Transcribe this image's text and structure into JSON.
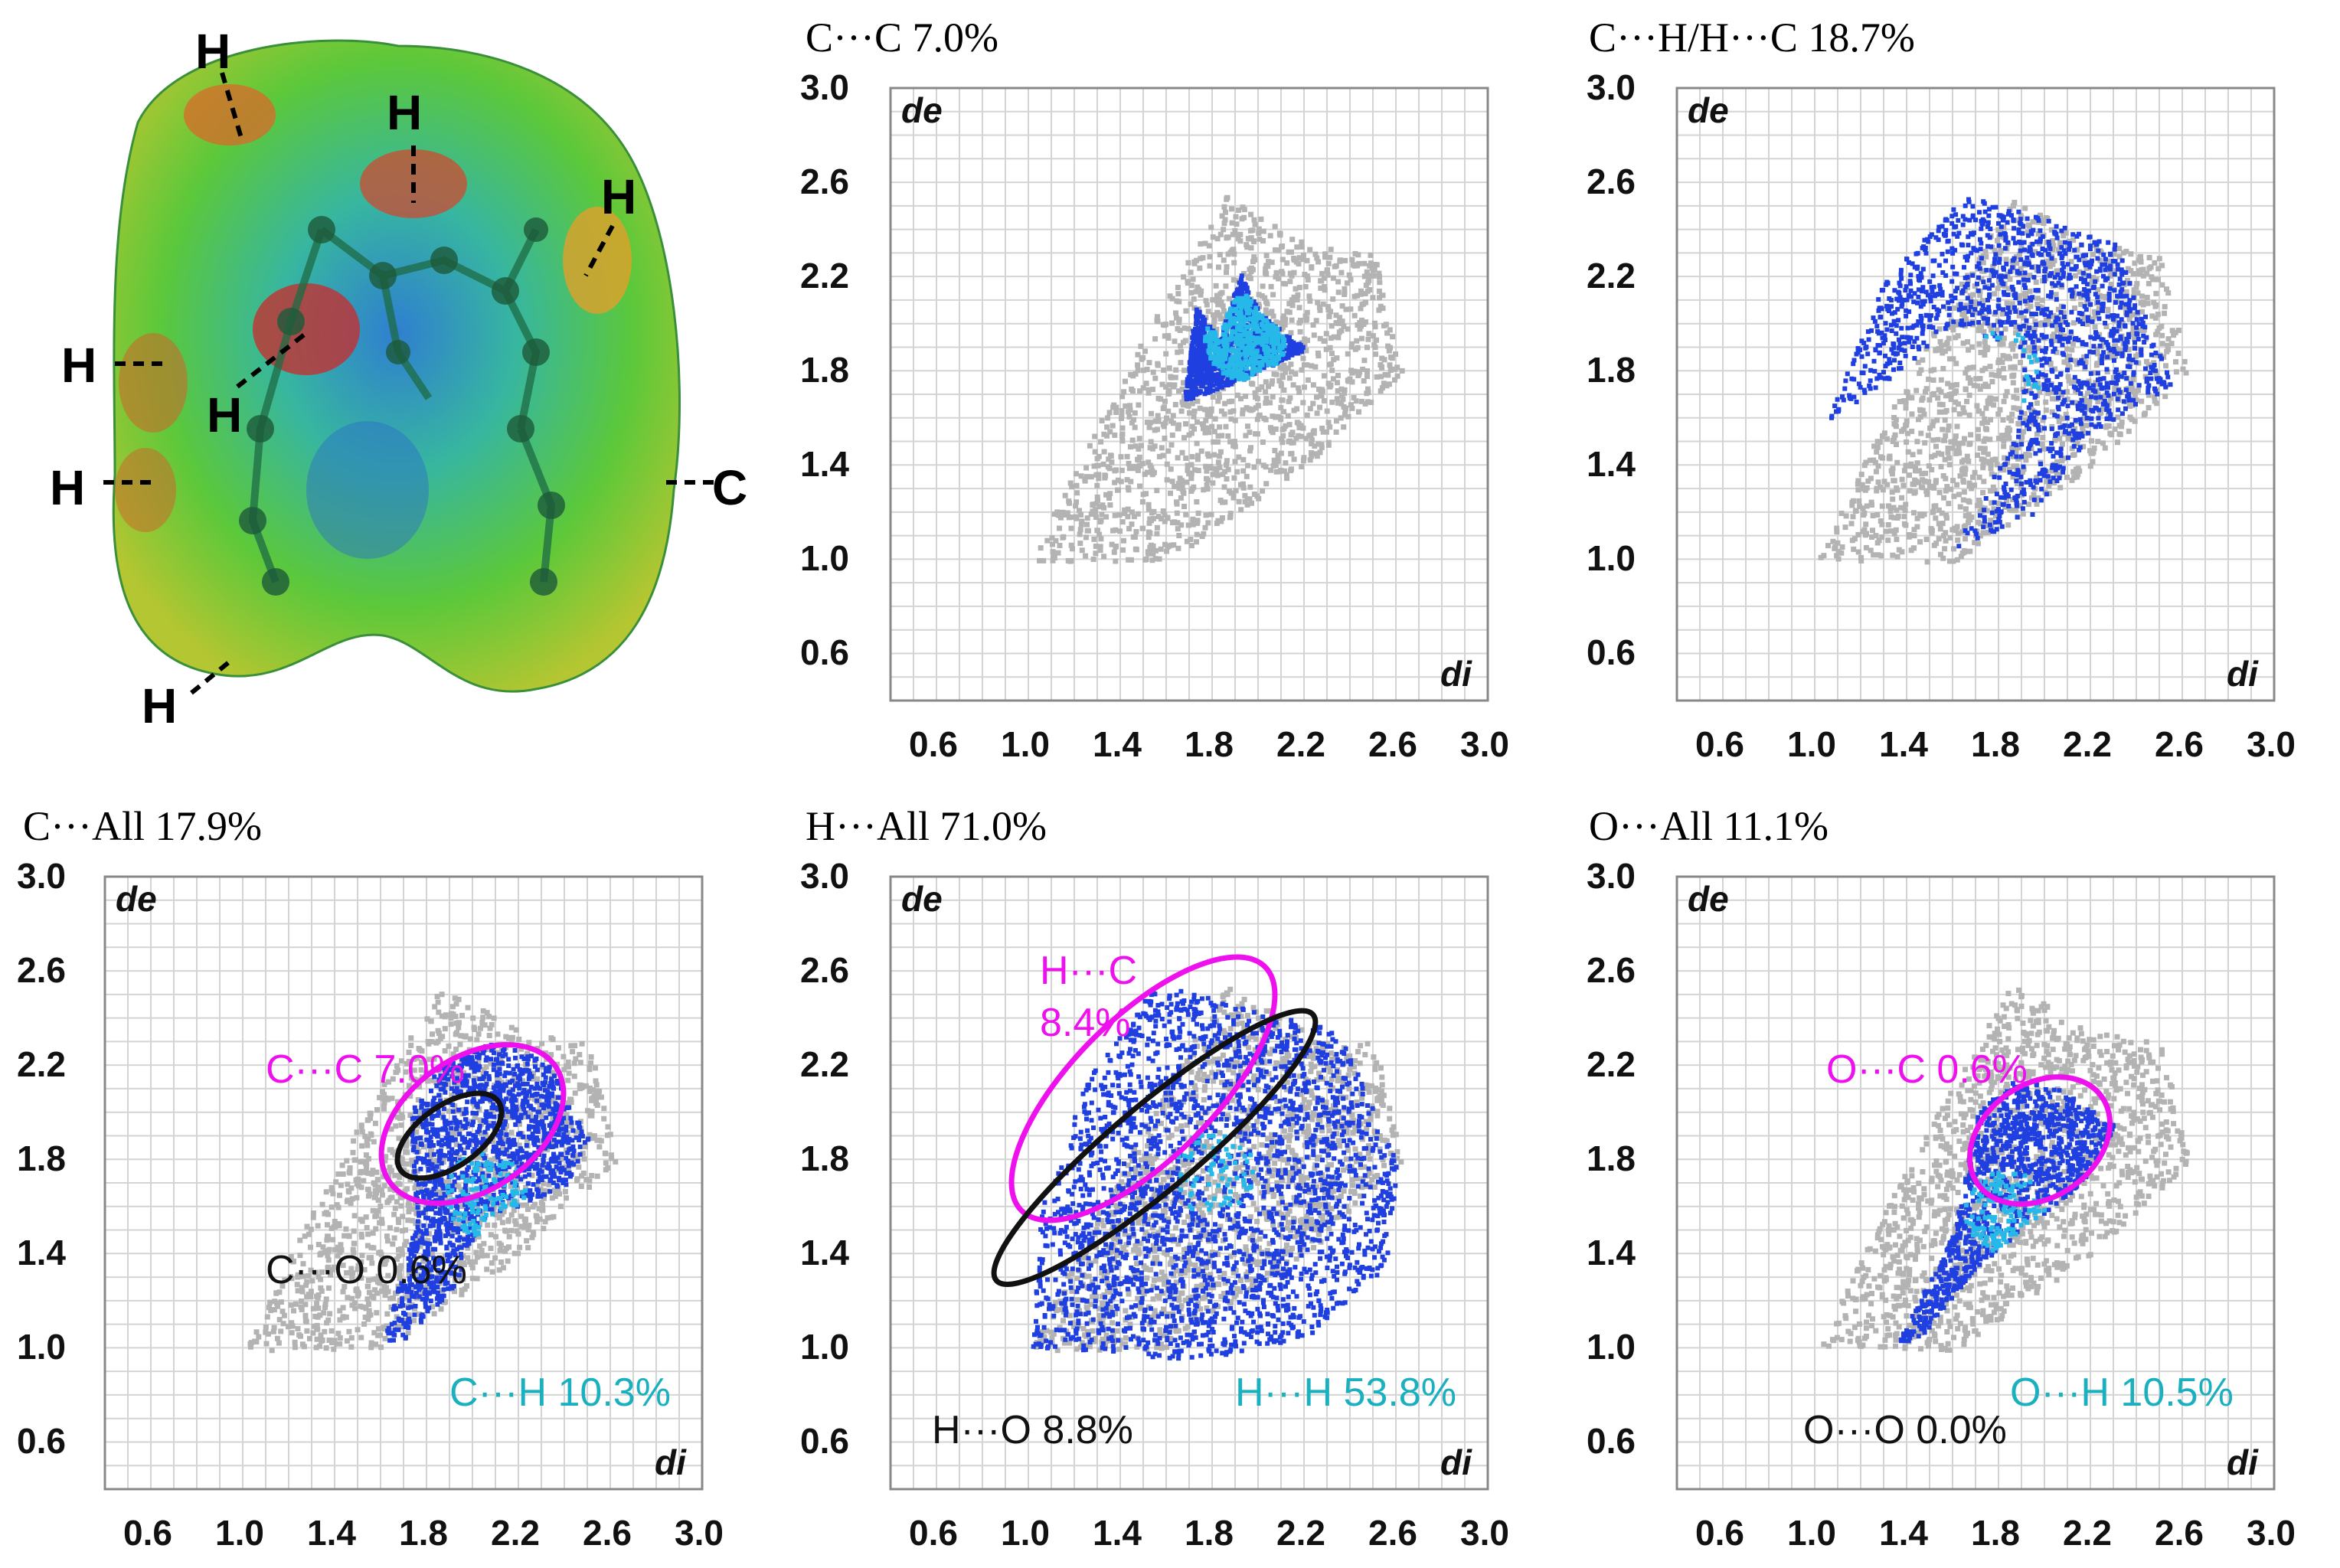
{
  "hirshfeld": {
    "atom_labels": [
      "H",
      "H",
      "H",
      "H",
      "H",
      "H",
      "H",
      "C"
    ]
  },
  "chart_data": [
    {
      "type": "scatter",
      "title": "C···C 7.0%",
      "xlabel": "di",
      "ylabel": "de",
      "xlim": [
        0.4,
        3.0
      ],
      "ylim": [
        0.4,
        3.0
      ],
      "xticks": [
        "0.6",
        "1.0",
        "1.4",
        "1.8",
        "2.2",
        "2.6",
        "3.0"
      ],
      "yticks": [
        "3.0",
        "2.6",
        "2.2",
        "1.8",
        "1.4",
        "1.0",
        "0.6"
      ],
      "grid": true,
      "background_region": [
        [
          1.0,
          1.0
        ],
        [
          1.25,
          1.5
        ],
        [
          1.55,
          2.05
        ],
        [
          1.85,
          2.55
        ],
        [
          2.2,
          2.35
        ],
        [
          2.5,
          2.3
        ],
        [
          2.62,
          1.8
        ],
        [
          2.2,
          1.4
        ],
        [
          1.6,
          1.0
        ]
      ],
      "highlight_region": [
        [
          1.67,
          1.68
        ],
        [
          1.72,
          2.08
        ],
        [
          1.82,
          1.95
        ],
        [
          1.92,
          2.22
        ],
        [
          2.0,
          2.05
        ],
        [
          2.2,
          1.9
        ],
        [
          1.95,
          1.78
        ]
      ],
      "annotations": []
    },
    {
      "type": "scatter",
      "title": "C···H/H···C 18.7%",
      "xlabel": "di",
      "ylabel": "de",
      "xlim": [
        0.4,
        3.0
      ],
      "ylim": [
        0.4,
        3.0
      ],
      "xticks": [
        "0.6",
        "1.0",
        "1.4",
        "1.8",
        "2.2",
        "2.6",
        "3.0"
      ],
      "yticks": [
        "3.0",
        "2.6",
        "2.2",
        "1.8",
        "1.4",
        "1.0",
        "0.6"
      ],
      "grid": true,
      "background_region": [
        [
          1.0,
          1.0
        ],
        [
          1.25,
          1.5
        ],
        [
          1.55,
          2.05
        ],
        [
          1.85,
          2.55
        ],
        [
          2.2,
          2.35
        ],
        [
          2.5,
          2.3
        ],
        [
          2.62,
          1.8
        ],
        [
          2.2,
          1.4
        ],
        [
          1.6,
          1.0
        ]
      ],
      "highlight_region": [
        [
          1.05,
          1.6
        ],
        [
          1.3,
          2.2
        ],
        [
          1.65,
          2.55
        ],
        [
          2.0,
          2.45
        ],
        [
          2.3,
          2.35
        ],
        [
          2.55,
          1.75
        ],
        [
          2.2,
          1.55
        ],
        [
          1.95,
          1.2
        ],
        [
          1.6,
          1.05
        ],
        [
          1.85,
          1.5
        ],
        [
          1.9,
          1.9
        ],
        [
          1.6,
          2.0
        ],
        [
          1.3,
          1.75
        ]
      ],
      "annotations": []
    },
    {
      "type": "scatter",
      "title": "C···All 17.9%",
      "xlabel": "di",
      "ylabel": "de",
      "xlim": [
        0.4,
        3.0
      ],
      "ylim": [
        0.4,
        3.0
      ],
      "xticks": [
        "0.6",
        "1.0",
        "1.4",
        "1.8",
        "2.2",
        "2.6",
        "3.0"
      ],
      "yticks": [
        "3.0",
        "2.6",
        "2.2",
        "1.8",
        "1.4",
        "1.0",
        "0.6"
      ],
      "grid": true,
      "background_region": [
        [
          1.0,
          1.0
        ],
        [
          1.25,
          1.5
        ],
        [
          1.55,
          2.05
        ],
        [
          1.85,
          2.55
        ],
        [
          2.2,
          2.35
        ],
        [
          2.5,
          2.3
        ],
        [
          2.62,
          1.8
        ],
        [
          2.2,
          1.4
        ],
        [
          1.6,
          1.0
        ]
      ],
      "highlight_region": [
        [
          1.6,
          1.02
        ],
        [
          1.75,
          1.55
        ],
        [
          1.72,
          2.0
        ],
        [
          1.85,
          2.2
        ],
        [
          2.05,
          2.3
        ],
        [
          2.3,
          2.25
        ],
        [
          2.5,
          1.9
        ],
        [
          2.4,
          1.7
        ],
        [
          2.05,
          1.55
        ],
        [
          1.9,
          1.25
        ],
        [
          1.7,
          1.05
        ]
      ],
      "annotations": [
        {
          "text": "C···C 7.0%",
          "x": 1.1,
          "y": 2.18,
          "color": "#ee11ee"
        },
        {
          "text": "C···O 0.6%",
          "x": 1.1,
          "y": 1.33,
          "color": "#111111"
        },
        {
          "text": "C···H 10.3%",
          "x": 1.9,
          "y": 0.81,
          "color": "#1ab0c0"
        }
      ]
    },
    {
      "type": "scatter",
      "title": "H···All 71.0%",
      "xlabel": "di",
      "ylabel": "de",
      "xlim": [
        0.4,
        3.0
      ],
      "ylim": [
        0.4,
        3.0
      ],
      "xticks": [
        "0.6",
        "1.0",
        "1.4",
        "1.8",
        "2.2",
        "2.6",
        "3.0"
      ],
      "yticks": [
        "3.0",
        "2.6",
        "2.2",
        "1.8",
        "1.4",
        "1.0",
        "0.6"
      ],
      "grid": true,
      "background_region": [
        [
          1.0,
          1.0
        ],
        [
          1.25,
          1.5
        ],
        [
          1.55,
          2.05
        ],
        [
          1.85,
          2.55
        ],
        [
          2.2,
          2.35
        ],
        [
          2.5,
          2.3
        ],
        [
          2.62,
          1.8
        ],
        [
          2.2,
          1.4
        ],
        [
          1.6,
          1.0
        ]
      ],
      "highlight_region": [
        [
          1.0,
          1.0
        ],
        [
          1.05,
          1.6
        ],
        [
          1.25,
          2.15
        ],
        [
          1.55,
          2.55
        ],
        [
          1.95,
          2.45
        ],
        [
          2.35,
          2.35
        ],
        [
          2.6,
          1.8
        ],
        [
          2.55,
          1.35
        ],
        [
          2.2,
          1.05
        ],
        [
          1.7,
          0.95
        ],
        [
          1.3,
          1.0
        ]
      ],
      "annotations": [
        {
          "text": "H···C",
          "x": 1.05,
          "y": 2.6,
          "color": "#ee11ee"
        },
        {
          "text": "8.4%",
          "x": 1.05,
          "y": 2.38,
          "color": "#ee11ee"
        },
        {
          "text": "H···O 8.8%",
          "x": 0.58,
          "y": 0.65,
          "color": "#111111"
        },
        {
          "text": "H···H 53.8%",
          "x": 1.9,
          "y": 0.81,
          "color": "#1ab0c0"
        }
      ]
    },
    {
      "type": "scatter",
      "title": "O···All 11.1%",
      "xlabel": "di",
      "ylabel": "de",
      "xlim": [
        0.4,
        3.0
      ],
      "ylim": [
        0.4,
        3.0
      ],
      "xticks": [
        "0.6",
        "1.0",
        "1.4",
        "1.8",
        "2.2",
        "2.6",
        "3.0"
      ],
      "yticks": [
        "3.0",
        "2.6",
        "2.2",
        "1.8",
        "1.4",
        "1.0",
        "0.6"
      ],
      "grid": true,
      "background_region": [
        [
          1.0,
          1.0
        ],
        [
          1.25,
          1.5
        ],
        [
          1.55,
          2.05
        ],
        [
          1.85,
          2.55
        ],
        [
          2.2,
          2.35
        ],
        [
          2.5,
          2.3
        ],
        [
          2.62,
          1.8
        ],
        [
          2.2,
          1.4
        ],
        [
          1.6,
          1.0
        ]
      ],
      "highlight_region": [
        [
          1.35,
          1.02
        ],
        [
          1.6,
          1.5
        ],
        [
          1.7,
          2.0
        ],
        [
          1.85,
          2.15
        ],
        [
          2.1,
          2.1
        ],
        [
          2.3,
          1.95
        ],
        [
          2.15,
          1.7
        ],
        [
          1.95,
          1.55
        ],
        [
          1.7,
          1.35
        ],
        [
          1.45,
          1.05
        ]
      ],
      "annotations": [
        {
          "text": "O···C 0.6%",
          "x": 1.05,
          "y": 2.18,
          "color": "#ee11ee"
        },
        {
          "text": "O···O 0.0%",
          "x": 0.95,
          "y": 0.65,
          "color": "#111111"
        },
        {
          "text": "O···H 10.5%",
          "x": 1.85,
          "y": 0.81,
          "color": "#1ab0c0"
        }
      ]
    }
  ]
}
